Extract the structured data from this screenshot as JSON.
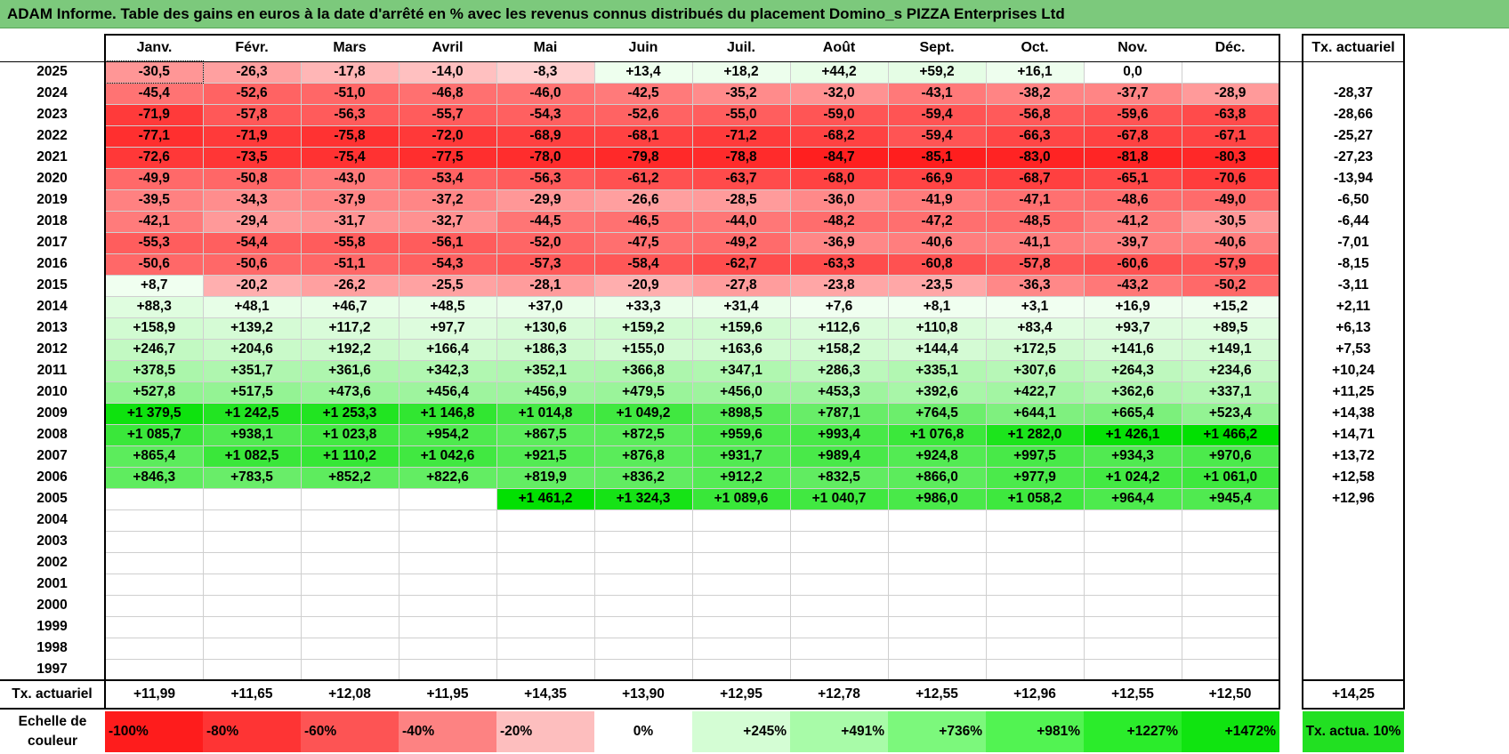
{
  "title": "ADAM Informe. Table des gains en euros à la date d'arrêté en % avec les revenus connus distribués du placement Domino_s PIZZA Enterprises Ltd",
  "months": [
    "Janv.",
    "Févr.",
    "Mars",
    "Avril",
    "Mai",
    "Juin",
    "Juil.",
    "Août",
    "Sept.",
    "Oct.",
    "Nov.",
    "Déc."
  ],
  "tx_header": "Tx. actuariel",
  "rows": [
    {
      "year": "2025",
      "values": [
        "-30,5",
        "-26,3",
        "-17,8",
        "-14,0",
        "-8,3",
        "+13,4",
        "+18,2",
        "+44,2",
        "+59,2",
        "+16,1",
        "0,0",
        ""
      ],
      "tx": ""
    },
    {
      "year": "2024",
      "values": [
        "-45,4",
        "-52,6",
        "-51,0",
        "-46,8",
        "-46,0",
        "-42,5",
        "-35,2",
        "-32,0",
        "-43,1",
        "-38,2",
        "-37,7",
        "-28,9"
      ],
      "tx": "-28,37"
    },
    {
      "year": "2023",
      "values": [
        "-71,9",
        "-57,8",
        "-56,3",
        "-55,7",
        "-54,3",
        "-52,6",
        "-55,0",
        "-59,0",
        "-59,4",
        "-56,8",
        "-59,6",
        "-63,8"
      ],
      "tx": "-28,66"
    },
    {
      "year": "2022",
      "values": [
        "-77,1",
        "-71,9",
        "-75,8",
        "-72,0",
        "-68,9",
        "-68,1",
        "-71,2",
        "-68,2",
        "-59,4",
        "-66,3",
        "-67,8",
        "-67,1"
      ],
      "tx": "-25,27"
    },
    {
      "year": "2021",
      "values": [
        "-72,6",
        "-73,5",
        "-75,4",
        "-77,5",
        "-78,0",
        "-79,8",
        "-78,8",
        "-84,7",
        "-85,1",
        "-83,0",
        "-81,8",
        "-80,3"
      ],
      "tx": "-27,23"
    },
    {
      "year": "2020",
      "values": [
        "-49,9",
        "-50,8",
        "-43,0",
        "-53,4",
        "-56,3",
        "-61,2",
        "-63,7",
        "-68,0",
        "-66,9",
        "-68,7",
        "-65,1",
        "-70,6"
      ],
      "tx": "-13,94"
    },
    {
      "year": "2019",
      "values": [
        "-39,5",
        "-34,3",
        "-37,9",
        "-37,2",
        "-29,9",
        "-26,6",
        "-28,5",
        "-36,0",
        "-41,9",
        "-47,1",
        "-48,6",
        "-49,0"
      ],
      "tx": "-6,50"
    },
    {
      "year": "2018",
      "values": [
        "-42,1",
        "-29,4",
        "-31,7",
        "-32,7",
        "-44,5",
        "-46,5",
        "-44,0",
        "-48,2",
        "-47,2",
        "-48,5",
        "-41,2",
        "-30,5"
      ],
      "tx": "-6,44"
    },
    {
      "year": "2017",
      "values": [
        "-55,3",
        "-54,4",
        "-55,8",
        "-56,1",
        "-52,0",
        "-47,5",
        "-49,2",
        "-36,9",
        "-40,6",
        "-41,1",
        "-39,7",
        "-40,6"
      ],
      "tx": "-7,01"
    },
    {
      "year": "2016",
      "values": [
        "-50,6",
        "-50,6",
        "-51,1",
        "-54,3",
        "-57,3",
        "-58,4",
        "-62,7",
        "-63,3",
        "-60,8",
        "-57,8",
        "-60,6",
        "-57,9"
      ],
      "tx": "-8,15"
    },
    {
      "year": "2015",
      "values": [
        "+8,7",
        "-20,2",
        "-26,2",
        "-25,5",
        "-28,1",
        "-20,9",
        "-27,8",
        "-23,8",
        "-23,5",
        "-36,3",
        "-43,2",
        "-50,2"
      ],
      "tx": "-3,11"
    },
    {
      "year": "2014",
      "values": [
        "+88,3",
        "+48,1",
        "+46,7",
        "+48,5",
        "+37,0",
        "+33,3",
        "+31,4",
        "+7,6",
        "+8,1",
        "+3,1",
        "+16,9",
        "+15,2"
      ],
      "tx": "+2,11"
    },
    {
      "year": "2013",
      "values": [
        "+158,9",
        "+139,2",
        "+117,2",
        "+97,7",
        "+130,6",
        "+159,2",
        "+159,6",
        "+112,6",
        "+110,8",
        "+83,4",
        "+93,7",
        "+89,5"
      ],
      "tx": "+6,13"
    },
    {
      "year": "2012",
      "values": [
        "+246,7",
        "+204,6",
        "+192,2",
        "+166,4",
        "+186,3",
        "+155,0",
        "+163,6",
        "+158,2",
        "+144,4",
        "+172,5",
        "+141,6",
        "+149,1"
      ],
      "tx": "+7,53"
    },
    {
      "year": "2011",
      "values": [
        "+378,5",
        "+351,7",
        "+361,6",
        "+342,3",
        "+352,1",
        "+366,8",
        "+347,1",
        "+286,3",
        "+335,1",
        "+307,6",
        "+264,3",
        "+234,6"
      ],
      "tx": "+10,24"
    },
    {
      "year": "2010",
      "values": [
        "+527,8",
        "+517,5",
        "+473,6",
        "+456,4",
        "+456,9",
        "+479,5",
        "+456,0",
        "+453,3",
        "+392,6",
        "+422,7",
        "+362,6",
        "+337,1"
      ],
      "tx": "+11,25"
    },
    {
      "year": "2009",
      "values": [
        "+1 379,5",
        "+1 242,5",
        "+1 253,3",
        "+1 146,8",
        "+1 014,8",
        "+1 049,2",
        "+898,5",
        "+787,1",
        "+764,5",
        "+644,1",
        "+665,4",
        "+523,4"
      ],
      "tx": "+14,38"
    },
    {
      "year": "2008",
      "values": [
        "+1 085,7",
        "+938,1",
        "+1 023,8",
        "+954,2",
        "+867,5",
        "+872,5",
        "+959,6",
        "+993,4",
        "+1 076,8",
        "+1 282,0",
        "+1 426,1",
        "+1 466,2"
      ],
      "tx": "+14,71"
    },
    {
      "year": "2007",
      "values": [
        "+865,4",
        "+1 082,5",
        "+1 110,2",
        "+1 042,6",
        "+921,5",
        "+876,8",
        "+931,7",
        "+989,4",
        "+924,8",
        "+997,5",
        "+934,3",
        "+970,6"
      ],
      "tx": "+13,72"
    },
    {
      "year": "2006",
      "values": [
        "+846,3",
        "+783,5",
        "+852,2",
        "+822,6",
        "+819,9",
        "+836,2",
        "+912,2",
        "+832,5",
        "+866,0",
        "+977,9",
        "+1 024,2",
        "+1 061,0"
      ],
      "tx": "+12,58"
    },
    {
      "year": "2005",
      "values": [
        "",
        "",
        "",
        "",
        "+1 461,2",
        "+1 324,3",
        "+1 089,6",
        "+1 040,7",
        "+986,0",
        "+1 058,2",
        "+964,4",
        "+945,4"
      ],
      "tx": "+12,96"
    },
    {
      "year": "2004",
      "values": [
        "",
        "",
        "",
        "",
        "",
        "",
        "",
        "",
        "",
        "",
        "",
        ""
      ],
      "tx": ""
    },
    {
      "year": "2003",
      "values": [
        "",
        "",
        "",
        "",
        "",
        "",
        "",
        "",
        "",
        "",
        "",
        ""
      ],
      "tx": ""
    },
    {
      "year": "2002",
      "values": [
        "",
        "",
        "",
        "",
        "",
        "",
        "",
        "",
        "",
        "",
        "",
        ""
      ],
      "tx": ""
    },
    {
      "year": "2001",
      "values": [
        "",
        "",
        "",
        "",
        "",
        "",
        "",
        "",
        "",
        "",
        "",
        ""
      ],
      "tx": ""
    },
    {
      "year": "2000",
      "values": [
        "",
        "",
        "",
        "",
        "",
        "",
        "",
        "",
        "",
        "",
        "",
        ""
      ],
      "tx": ""
    },
    {
      "year": "1999",
      "values": [
        "",
        "",
        "",
        "",
        "",
        "",
        "",
        "",
        "",
        "",
        "",
        ""
      ],
      "tx": ""
    },
    {
      "year": "1998",
      "values": [
        "",
        "",
        "",
        "",
        "",
        "",
        "",
        "",
        "",
        "",
        "",
        ""
      ],
      "tx": ""
    },
    {
      "year": "1997",
      "values": [
        "",
        "",
        "",
        "",
        "",
        "",
        "",
        "",
        "",
        "",
        "",
        ""
      ],
      "tx": ""
    }
  ],
  "footer": {
    "label": "Tx. actuariel",
    "values": [
      "+11,99",
      "+11,65",
      "+12,08",
      "+11,95",
      "+14,35",
      "+13,90",
      "+12,95",
      "+12,78",
      "+12,55",
      "+12,96",
      "+12,55",
      "+12,50"
    ],
    "total": "+14,25"
  },
  "scale": {
    "label": "Echelle de couleur",
    "items": [
      {
        "text": "-100%",
        "color": "#fe1c1c",
        "kind": "neg"
      },
      {
        "text": "-80%",
        "color": "#fe3434",
        "kind": "neg"
      },
      {
        "text": "-60%",
        "color": "#fd5454",
        "kind": "neg"
      },
      {
        "text": "-40%",
        "color": "#fd8282",
        "kind": "neg"
      },
      {
        "text": "-20%",
        "color": "#fdbebe",
        "kind": "neg"
      },
      {
        "text": "0%",
        "color": "#ffffff",
        "kind": "zero"
      },
      {
        "text": "+245%",
        "color": "#d4fdd4",
        "kind": "pos"
      },
      {
        "text": "+491%",
        "color": "#a8fba8",
        "kind": "pos"
      },
      {
        "text": "+736%",
        "color": "#7cf87c",
        "kind": "pos"
      },
      {
        "text": "+981%",
        "color": "#52f352",
        "kind": "pos"
      },
      {
        "text": "+1227%",
        "color": "#2bec2b",
        "kind": "pos"
      },
      {
        "text": "+1472%",
        "color": "#10e410",
        "kind": "pos"
      }
    ],
    "tx_label": "Tx. actua. 10%",
    "tx_color": "#22e022"
  },
  "colors": {
    "title_bar": "#7cc97c",
    "negative_max": "#ff0000",
    "positive_max": "#00e000"
  }
}
